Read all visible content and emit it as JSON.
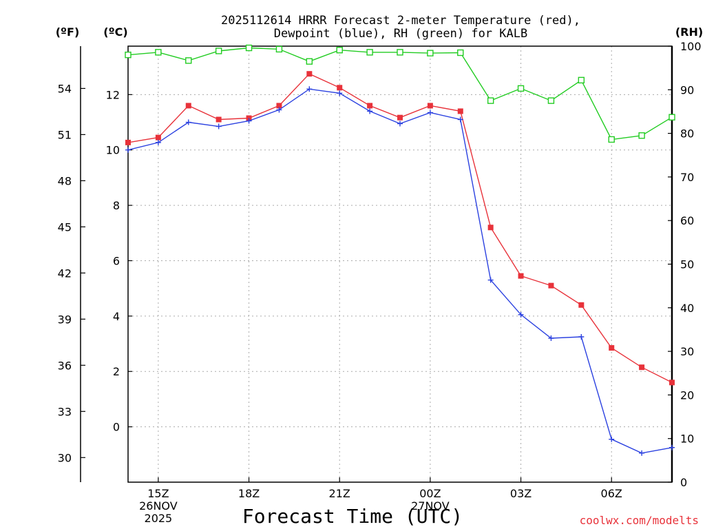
{
  "chart_data": {
    "type": "line",
    "title_line1": "2025112614 HRRR Forecast 2-meter Temperature (red),",
    "title_line2": "Dewpoint (blue), RH (green) for KALB",
    "xlabel": "Forecast Time (UTC)",
    "watermark": "coolwx.com/modelts",
    "left_f_label": "(ºF)",
    "left_c_label": "(ºC)",
    "right_label": "(RH)",
    "x_hours": [
      14,
      15,
      16,
      17,
      18,
      19,
      20,
      21,
      22,
      23,
      24,
      25,
      26,
      27,
      28,
      29,
      30,
      31,
      32
    ],
    "x_range": [
      14,
      32
    ],
    "x_ticks": [
      {
        "hour": 15,
        "lines": [
          "15Z",
          "26NOV",
          "2025"
        ]
      },
      {
        "hour": 18,
        "lines": [
          "18Z"
        ]
      },
      {
        "hour": 21,
        "lines": [
          "21Z"
        ]
      },
      {
        "hour": 24,
        "lines": [
          "00Z",
          "27NOV"
        ]
      },
      {
        "hour": 27,
        "lines": [
          "03Z"
        ]
      },
      {
        "hour": 30,
        "lines": [
          "06Z"
        ]
      }
    ],
    "c_range": [
      -2,
      13.75
    ],
    "c_ticks": [
      0,
      2,
      4,
      6,
      8,
      10,
      12
    ],
    "f_ticks": [
      30,
      33,
      36,
      39,
      42,
      45,
      48,
      51,
      54
    ],
    "rh_range": [
      0,
      100
    ],
    "rh_ticks": [
      0,
      10,
      20,
      30,
      40,
      50,
      60,
      70,
      80,
      90,
      100
    ],
    "series": [
      {
        "name": "Temperature",
        "unit": "C",
        "color": "#e8323a",
        "marker": "filled-square",
        "values": [
          10.27,
          10.45,
          11.6,
          11.1,
          11.15,
          11.6,
          12.75,
          12.25,
          11.6,
          11.17,
          11.6,
          11.4,
          7.2,
          5.45,
          5.1,
          4.4,
          2.85,
          2.15,
          1.6
        ]
      },
      {
        "name": "Dewpoint",
        "unit": "C",
        "color": "#2a40e0",
        "marker": "plus",
        "values": [
          10.0,
          10.27,
          11.0,
          10.85,
          11.05,
          11.45,
          12.2,
          12.05,
          11.4,
          10.95,
          11.35,
          11.1,
          5.3,
          4.05,
          3.2,
          3.25,
          -0.45,
          -0.95,
          -0.75
        ]
      },
      {
        "name": "RH",
        "unit": "%",
        "color": "#22cc22",
        "marker": "open-square",
        "values": [
          98.0,
          98.6,
          96.7,
          98.9,
          99.6,
          99.3,
          96.5,
          99.1,
          98.6,
          98.6,
          98.4,
          98.5,
          87.5,
          90.3,
          87.5,
          92.2,
          78.6,
          79.5,
          83.7
        ]
      }
    ]
  }
}
